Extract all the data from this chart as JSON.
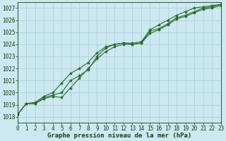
{
  "xlabel": "Graphe pression niveau de la mer (hPa)",
  "hours": [
    0,
    1,
    2,
    3,
    4,
    5,
    6,
    7,
    8,
    9,
    10,
    11,
    12,
    13,
    14,
    15,
    16,
    17,
    18,
    19,
    20,
    21,
    22,
    23
  ],
  "line_upper": [
    1018.2,
    1019.1,
    1019.2,
    1019.7,
    1020.0,
    1020.8,
    1021.6,
    1022.0,
    1022.5,
    1023.3,
    1023.8,
    1024.0,
    1024.1,
    1024.1,
    1024.2,
    1025.2,
    1025.6,
    1026.0,
    1026.4,
    1026.7,
    1027.0,
    1027.1,
    1027.2,
    1027.3
  ],
  "line_mid": [
    1018.2,
    1019.1,
    1019.1,
    1019.6,
    1019.8,
    1020.0,
    1021.0,
    1021.4,
    1021.9,
    1023.0,
    1023.7,
    1024.0,
    1024.1,
    1024.0,
    1024.1,
    1025.1,
    1025.3,
    1025.7,
    1026.2,
    1026.4,
    1026.7,
    1027.0,
    1027.1,
    1027.3
  ],
  "line_lower": [
    1018.2,
    1019.1,
    1019.1,
    1019.5,
    1019.7,
    1019.6,
    1020.4,
    1021.2,
    1022.0,
    1022.8,
    1023.4,
    1023.8,
    1024.0,
    1024.0,
    1024.1,
    1024.9,
    1025.2,
    1025.6,
    1026.1,
    1026.3,
    1026.6,
    1026.9,
    1027.0,
    1027.2
  ],
  "ylim": [
    1017.5,
    1027.5
  ],
  "yticks": [
    1018,
    1019,
    1020,
    1021,
    1022,
    1023,
    1024,
    1025,
    1026,
    1027
  ],
  "line_color": "#2d6a2d",
  "bg_color": "#cce8f0",
  "grid_color": "#aaccd8",
  "text_color": "#1a3d1a",
  "marker": "*",
  "markersize": 3,
  "linewidth": 0.8,
  "tick_fontsize": 5.5,
  "xlabel_fontsize": 6.5,
  "xlabel_bold": true
}
